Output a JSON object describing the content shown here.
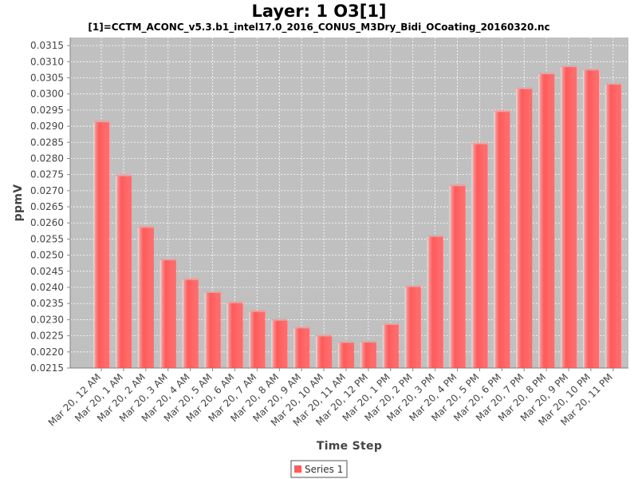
{
  "chart_data": {
    "type": "bar",
    "title": "Layer: 1 O3[1]",
    "subtitle": "[1]=CCTM_ACONC_v5.3.b1_intel17.0_2016_CONUS_M3Dry_Bidi_OCoating_20160320.nc",
    "xlabel": "Time Step",
    "ylabel": "ppmV",
    "ylim": [
      0.0215,
      0.03175
    ],
    "yticks": [
      "0.0215",
      "0.0220",
      "0.0225",
      "0.0230",
      "0.0235",
      "0.0240",
      "0.0245",
      "0.0250",
      "0.0255",
      "0.0260",
      "0.0265",
      "0.0270",
      "0.0275",
      "0.0280",
      "0.0285",
      "0.0290",
      "0.0295",
      "0.0300",
      "0.0305",
      "0.0310",
      "0.0315"
    ],
    "grid": true,
    "legend_position": "bottom-center",
    "categories": [
      "Mar 20, 12 AM",
      "Mar 20, 1 AM",
      "Mar 20, 2 AM",
      "Mar 20, 3 AM",
      "Mar 20, 4 AM",
      "Mar 20, 5 AM",
      "Mar 20, 6 AM",
      "Mar 20, 7 AM",
      "Mar 20, 8 AM",
      "Mar 20, 9 AM",
      "Mar 20, 10 AM",
      "Mar 20, 11 AM",
      "Mar 20, 12 PM",
      "Mar 20, 1 PM",
      "Mar 20, 2 PM",
      "Mar 20, 3 PM",
      "Mar 20, 4 PM",
      "Mar 20, 5 PM",
      "Mar 20, 6 PM",
      "Mar 20, 7 PM",
      "Mar 20, 8 PM",
      "Mar 20, 9 PM",
      "Mar 20, 10 PM",
      "Mar 20, 11 PM"
    ],
    "series": [
      {
        "name": "Series 1",
        "values": [
          0.02917,
          0.0275,
          0.0259,
          0.02489,
          0.02428,
          0.02388,
          0.02356,
          0.02329,
          0.02302,
          0.02278,
          0.02253,
          0.02233,
          0.02234,
          0.02289,
          0.02406,
          0.02562,
          0.02719,
          0.02849,
          0.02949,
          0.0302,
          0.03066,
          0.03088,
          0.03078,
          0.03034
        ]
      }
    ],
    "colors": {
      "bar": "#ff5c5c",
      "bar_highlight": "#ffd6d6",
      "bar_shade": "#e04848",
      "plot_background": "#c0c0c0",
      "gridline": "#ffffff"
    }
  }
}
